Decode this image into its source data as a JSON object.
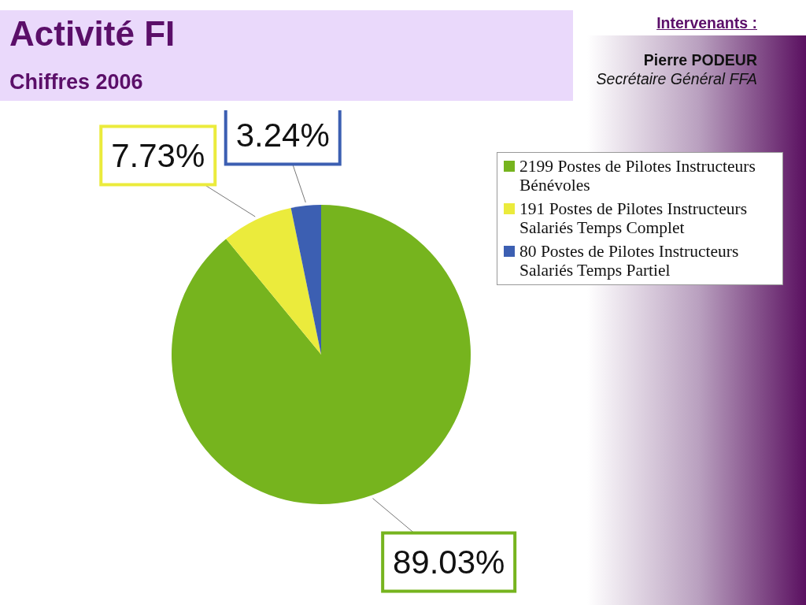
{
  "chart_data": {
    "type": "pie",
    "title": "Activité FI",
    "subtitle": "Chiffres 2006",
    "categories": [
      "2199 Postes de Pilotes Instructeurs Bénévoles",
      "191 Postes de Pilotes Instructeurs Salariés Temps Complet",
      "80 Postes de Pilotes Instructeurs Salariés Temps Partiel"
    ],
    "values": [
      89.03,
      7.73,
      3.24
    ],
    "colors": [
      "#76b41e",
      "#ebeb3c",
      "#3c5fb2"
    ],
    "value_labels": [
      "89.03%",
      "7.73%",
      "3.24%"
    ],
    "legend": "top right",
    "annotations": [
      "Intervenants :",
      "Pierre PODEUR",
      "Secrétaire Général FFA"
    ]
  }
}
